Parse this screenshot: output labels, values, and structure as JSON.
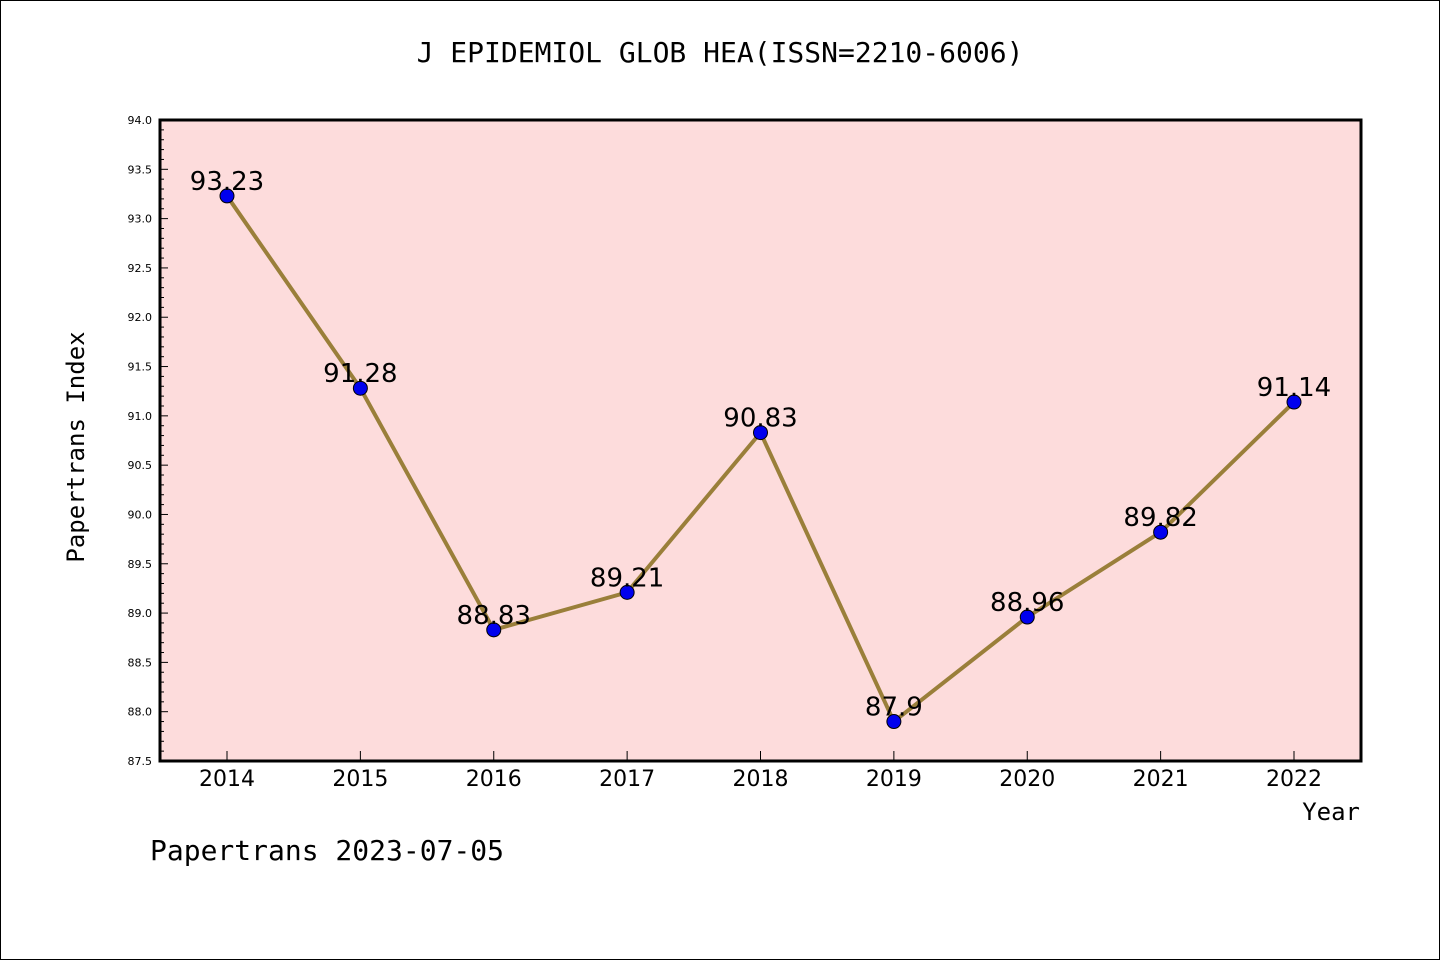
{
  "title": "J EPIDEMIOL GLOB HEA(ISSN=2210-6006)",
  "footer": "Papertrans 2023-07-05",
  "colors": {
    "plot_background": "#fddcdc",
    "line": "#9a7f3a",
    "marker": "#0000ee"
  },
  "chart_data": {
    "type": "line",
    "title": "J EPIDEMIOL GLOB HEA(ISSN=2210-6006)",
    "xlabel": "Year",
    "ylabel": "Papertrans Index",
    "categories": [
      "2014",
      "2015",
      "2016",
      "2017",
      "2018",
      "2019",
      "2020",
      "2021",
      "2022"
    ],
    "series": [
      {
        "values": [
          93.23,
          91.28,
          88.83,
          89.21,
          90.83,
          87.9,
          88.96,
          89.82,
          91.14
        ],
        "labels": [
          "93.23",
          "91.28",
          "88.83",
          "89.21",
          "90.83",
          "87.9",
          "88.96",
          "89.82",
          "91.14"
        ]
      }
    ],
    "ylim": [
      87.5,
      94.0
    ],
    "yticks": [
      "87.5",
      "88.0",
      "88.5",
      "89.0",
      "89.5",
      "90.0",
      "90.5",
      "91.0",
      "91.5",
      "92.0",
      "92.5",
      "93.0",
      "93.5",
      "94.0"
    ],
    "grid": false,
    "legend": "none"
  }
}
